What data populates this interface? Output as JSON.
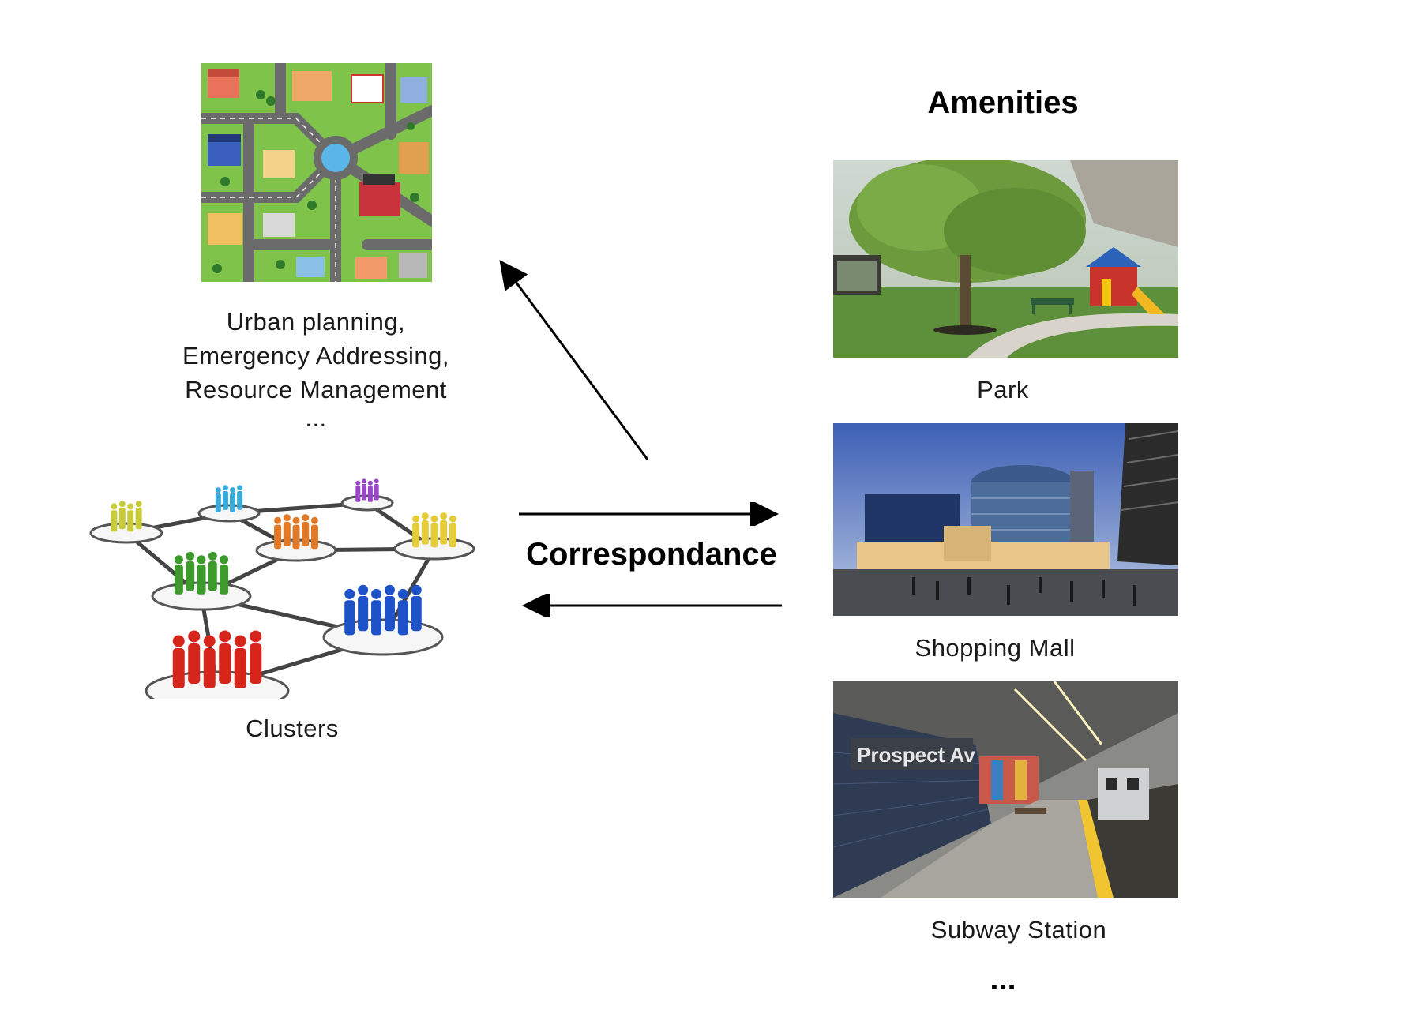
{
  "applications": {
    "lines": [
      "Urban planning,",
      "Emergency Addressing,",
      "Resource Management",
      "..."
    ]
  },
  "clusters": {
    "label": "Clusters"
  },
  "correspondence": {
    "label": "Correspondance"
  },
  "amenities": {
    "title": "Amenities",
    "items": [
      {
        "label": "Park"
      },
      {
        "label": "Shopping Mall"
      },
      {
        "label": "Subway Station",
        "sign_text": "Prospect Av"
      }
    ],
    "more": "..."
  },
  "colors": {
    "clusters": [
      "#c9cc3a",
      "#3aaad8",
      "#9a46c8",
      "#e07a28",
      "#e6cc3a",
      "#3f9a2e",
      "#1e52c8",
      "#d6261c"
    ]
  }
}
